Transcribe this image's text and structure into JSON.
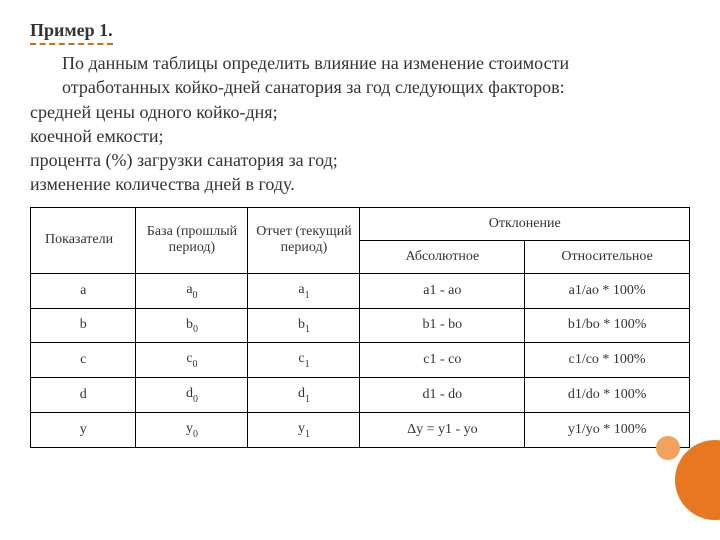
{
  "title": "Пример 1.",
  "body": {
    "line1": "По данным таблицы определить влияние на изменение стоимости",
    "line2": "отработанных койко-дней санатория за год следующих факторов:",
    "line3": "средней цены одного койко-дня;",
    "line4": "коечной емкости;",
    "line5": "процента (%) загрузки санатория за год;",
    "line6": "изменение количества дней в году."
  },
  "table": {
    "headers": {
      "col1": "Показатели",
      "col2": "База (прошлый период)",
      "col3": "Отчет (текущий период)",
      "col4": "Отклонение",
      "col4a": "Абсолютное",
      "col4b": "Относительное"
    },
    "rows": [
      {
        "p": "a",
        "base": "a",
        "base_sub": "0",
        "otchet": "a",
        "otchet_sub": "1",
        "abs": "a1 - ao",
        "rel": "a1/ao * 100%"
      },
      {
        "p": "b",
        "base": "b",
        "base_sub": "0",
        "otchet": "b",
        "otchet_sub": "1",
        "abs": "b1 - bo",
        "rel": "b1/bo * 100%"
      },
      {
        "p": "c",
        "base": "c",
        "base_sub": "0",
        "otchet": "c",
        "otchet_sub": "1",
        "abs": "c1 - co",
        "rel": "c1/co * 100%"
      },
      {
        "p": "d",
        "base": "d",
        "base_sub": "0",
        "otchet": "d",
        "otchet_sub": "1",
        "abs": "d1 - do",
        "rel": "d1/do * 100%"
      },
      {
        "p": "y",
        "base": "y",
        "base_sub": "0",
        "otchet": "y",
        "otchet_sub": "1",
        "abs": "Δy = y1 - yo",
        "rel": "y1/yo * 100%"
      }
    ]
  },
  "style": {
    "accent_color": "#de6a10",
    "circle_big_color": "#e87722",
    "circle_small_color": "#f2a25c",
    "text_color": "#333333",
    "border_color": "#000000",
    "background_color": "#ffffff",
    "title_fontsize": 18,
    "body_fontsize": 18,
    "table_fontsize": 14
  }
}
